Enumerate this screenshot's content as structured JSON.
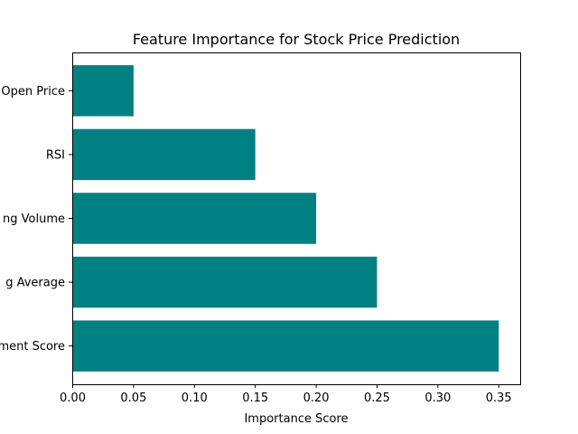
{
  "chart_data": {
    "type": "bar",
    "orientation": "horizontal",
    "title": "Feature Importance for Stock Price Prediction",
    "xlabel": "Importance Score",
    "ylabel": "",
    "categories": [
      "Open Price",
      "RSI",
      "Trading Volume",
      "Moving Average",
      "Sentiment Score"
    ],
    "category_labels_visible": [
      "Open Price",
      "RSI",
      "ng Volume",
      "g Average",
      "ment Score"
    ],
    "values": [
      0.05,
      0.15,
      0.2,
      0.25,
      0.35
    ],
    "xlim": [
      0.0,
      0.368
    ],
    "xticks": [
      0.0,
      0.05,
      0.1,
      0.15,
      0.2,
      0.25,
      0.3,
      0.35
    ],
    "xtick_labels": [
      "0.00",
      "0.05",
      "0.10",
      "0.15",
      "0.20",
      "0.25",
      "0.30",
      "0.35"
    ],
    "bar_color": "#008080",
    "grid": false,
    "legend": "none"
  }
}
